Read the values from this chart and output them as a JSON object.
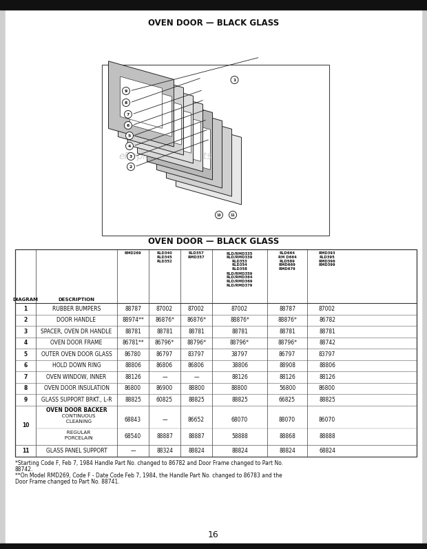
{
  "page_title": "OVEN DOOR — BLACK GLASS",
  "diagram_subtitle": "OVEN DOOR — BLACK GLASS",
  "watermark": "eReplacementParts",
  "page_number": "16",
  "bg_color": "#e8e8e8",
  "page_bg": "#f0f0f0",
  "col_headers": [
    "DIAGRAM",
    "DESCRIPTION",
    "RMD269",
    "RLD340\nRLD345\nRLD352",
    "RLD357\nRMD357",
    "RLD/RMD335\nRLD/RMD339\nRLD353\nRLD354\nRLD358\nRLD/RMD359\nRLD/RMD364\nRLD/RMD369\nRLD/RMD379",
    "RLD664\nRM D664\nRLD589\nRMD669\nRMD679",
    "RMD393\nRLD395\nRMD396\nRMD399"
  ],
  "table_rows": [
    [
      "1",
      "RUBBER BUMPERS",
      "88787",
      "87002",
      "87002",
      "87002",
      "88787",
      "87002"
    ],
    [
      "2",
      "DOOR HANDLE",
      "88974**",
      "86876*",
      "86876*",
      "88876*",
      "88876*",
      "86782"
    ],
    [
      "3",
      "SPACER, OVEN DR HANDLE",
      "88781",
      "88781",
      "88781",
      "88781",
      "88781",
      "88781"
    ],
    [
      "4",
      "OVEN DOOR FRAME",
      "86781**",
      "86796*",
      "88796*",
      "88796*",
      "88796*",
      "88742"
    ],
    [
      "5",
      "OUTER OVEN DOOR GLASS",
      "86780",
      "86797",
      "83797",
      "38797",
      "86797",
      "83797"
    ],
    [
      "6",
      "HOLD DOWN RING",
      "88806",
      "86806",
      "86806",
      "38806",
      "88908",
      "88806"
    ],
    [
      "7",
      "OVEN WINDOW, INNER",
      "88126",
      "—",
      "—",
      "88126",
      "88126",
      "88126"
    ],
    [
      "8",
      "OVEN DOOR INSULATION",
      "86800",
      "86900",
      "88800",
      "88800",
      "56800",
      "86800"
    ],
    [
      "9",
      "GLASS SUPPORT BRKT., L-R",
      "88825",
      "60825",
      "88825",
      "88825",
      "66825",
      "88825"
    ]
  ],
  "row10_desc_top": "OVEN DOOR BACKER",
  "row10a_desc": "   CONTINUOUS\n   CLEANING",
  "row10b_desc": "   REGULAR\n   PORCELAIN",
  "row10a_vals": [
    "68843",
    "—",
    "86652",
    "68070",
    "88070",
    "86070"
  ],
  "row10b_vals": [
    "68540",
    "88887",
    "88887",
    "58888",
    "88868",
    "88888"
  ],
  "row11": [
    "11",
    "GLASS PANEL SUPPORT",
    "—",
    "88324",
    "88824",
    "88824",
    "88824",
    "68824"
  ],
  "footnotes": [
    "*Starting Code F, Feb 7, 1984 Handle Part No. changed to 86782 and Door Frame changed to Part No.",
    "88742.",
    "**On Model RMD269, Code F - Date Code Feb 7, 1984, the Handle Part No. changed to 86783 and the",
    "Door Frame changed to Part No. 88741."
  ]
}
